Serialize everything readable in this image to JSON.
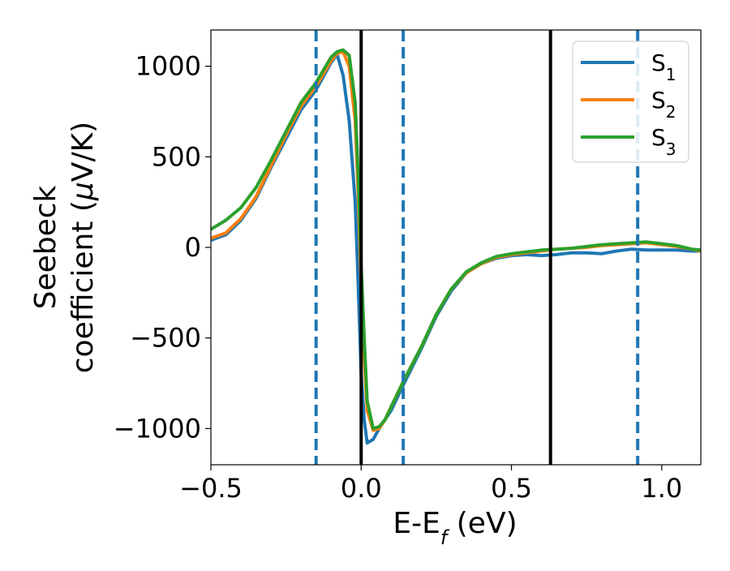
{
  "chart_data": {
    "type": "line",
    "xlabel_main": "E-E",
    "xlabel_sub": "f",
    "xlabel_unit": " (eV)",
    "ylabel_line1": "Seebeck",
    "ylabel_line2_prefix": "coefficient  (",
    "ylabel_line2_mu": "μ",
    "ylabel_line2_suffix": "V/K)",
    "xlim": [
      -0.5,
      1.13
    ],
    "ylim": [
      -1200,
      1200
    ],
    "x_ticks": [
      -0.5,
      0.0,
      0.5,
      1.0
    ],
    "x_tick_labels": [
      "−0.5",
      "0.0",
      "0.5",
      "1.0"
    ],
    "y_ticks": [
      -1000,
      -500,
      0,
      500,
      1000
    ],
    "y_tick_labels": [
      "−1000",
      "−500",
      "0",
      "500",
      "1000"
    ],
    "grid": false,
    "legend_position": "top-right",
    "vlines_solid": [
      0.0,
      0.63
    ],
    "vlines_dashed": [
      -0.15,
      0.14,
      0.92
    ],
    "vline_solid_color": "#000000",
    "vline_dashed_color": "#1f77b4",
    "series": [
      {
        "name": "S",
        "subscript": "1",
        "color": "#1f77b4",
        "x": [
          -0.5,
          -0.45,
          -0.4,
          -0.35,
          -0.3,
          -0.25,
          -0.2,
          -0.15,
          -0.1,
          -0.08,
          -0.06,
          -0.04,
          -0.02,
          -0.01,
          0.0,
          0.01,
          0.02,
          0.04,
          0.06,
          0.08,
          0.1,
          0.14,
          0.2,
          0.25,
          0.3,
          0.35,
          0.4,
          0.45,
          0.5,
          0.55,
          0.6,
          0.65,
          0.7,
          0.75,
          0.8,
          0.85,
          0.9,
          0.95,
          1.0,
          1.05,
          1.1,
          1.13
        ],
        "y": [
          40,
          70,
          150,
          270,
          440,
          600,
          760,
          870,
          1020,
          1065,
          950,
          700,
          250,
          -200,
          -700,
          -950,
          -1080,
          -1060,
          -1000,
          -950,
          -900,
          -760,
          -560,
          -380,
          -240,
          -140,
          -90,
          -60,
          -45,
          -40,
          -45,
          -40,
          -30,
          -30,
          -35,
          -20,
          -10,
          -15,
          -15,
          -15,
          -20,
          -20
        ]
      },
      {
        "name": "S",
        "subscript": "2",
        "color": "#ff7f0e",
        "x": [
          -0.5,
          -0.45,
          -0.4,
          -0.35,
          -0.3,
          -0.25,
          -0.2,
          -0.15,
          -0.1,
          -0.08,
          -0.06,
          -0.04,
          -0.02,
          -0.01,
          0.0,
          0.01,
          0.02,
          0.04,
          0.06,
          0.08,
          0.1,
          0.14,
          0.2,
          0.25,
          0.3,
          0.35,
          0.4,
          0.45,
          0.5,
          0.55,
          0.6,
          0.65,
          0.7,
          0.75,
          0.8,
          0.85,
          0.9,
          0.95,
          1.0,
          1.05,
          1.1,
          1.13
        ],
        "y": [
          50,
          80,
          160,
          280,
          450,
          620,
          780,
          890,
          1030,
          1070,
          1080,
          1000,
          700,
          300,
          -200,
          -600,
          -900,
          -1010,
          -1000,
          -950,
          -880,
          -740,
          -550,
          -370,
          -230,
          -140,
          -90,
          -55,
          -40,
          -30,
          -20,
          -10,
          -5,
          0,
          10,
          15,
          20,
          25,
          15,
          5,
          -10,
          -20
        ]
      },
      {
        "name": "S",
        "subscript": "3",
        "color": "#2ca02c",
        "x": [
          -0.5,
          -0.45,
          -0.4,
          -0.35,
          -0.3,
          -0.25,
          -0.2,
          -0.15,
          -0.1,
          -0.08,
          -0.06,
          -0.04,
          -0.02,
          -0.01,
          0.0,
          0.01,
          0.02,
          0.04,
          0.06,
          0.08,
          0.1,
          0.14,
          0.2,
          0.25,
          0.3,
          0.35,
          0.4,
          0.45,
          0.5,
          0.55,
          0.6,
          0.65,
          0.7,
          0.75,
          0.8,
          0.85,
          0.9,
          0.95,
          1.0,
          1.05,
          1.1,
          1.13
        ],
        "y": [
          100,
          150,
          220,
          330,
          480,
          640,
          800,
          910,
          1050,
          1080,
          1090,
          1060,
          800,
          400,
          -100,
          -500,
          -850,
          -1000,
          -990,
          -950,
          -880,
          -740,
          -550,
          -370,
          -230,
          -135,
          -85,
          -50,
          -35,
          -25,
          -15,
          -10,
          -5,
          5,
          15,
          20,
          25,
          30,
          20,
          10,
          -10,
          -15
        ]
      }
    ]
  }
}
